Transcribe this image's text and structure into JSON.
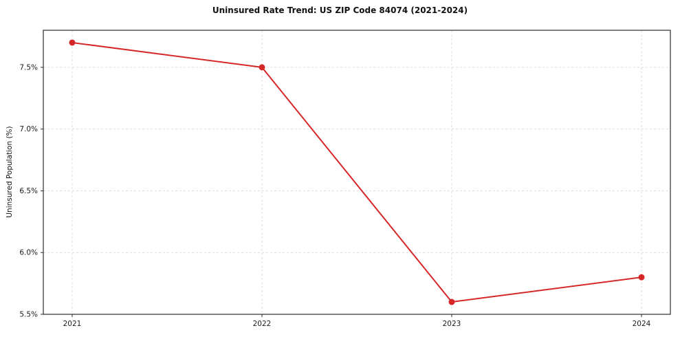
{
  "page": {
    "background": "#ffffff"
  },
  "chart_data": {
    "type": "line",
    "title": "Uninsured Rate Trend: US ZIP Code 84074 (2021-2024)",
    "xlabel": "",
    "ylabel": "Uninsured Population (%)",
    "categories": [
      "2021",
      "2022",
      "2023",
      "2024"
    ],
    "series": [
      {
        "name": "Uninsured Population (%)",
        "values": [
          7.7,
          7.5,
          5.6,
          5.8
        ],
        "color": "#d62728"
      }
    ],
    "ylim": [
      5.5,
      7.8
    ],
    "yticks": [
      5.5,
      6.0,
      6.5,
      7.0,
      7.5
    ],
    "ytick_labels": [
      "5.5%",
      "6.0%",
      "6.5%",
      "7.0%",
      "7.5%"
    ],
    "grid": true,
    "grid_style": "dashed",
    "legend_position": "none",
    "marker": "circle",
    "line_width": 2
  },
  "colors": {
    "line": "#d62728",
    "grid": "#dcdcdc",
    "axis": "#2b2b2b",
    "text": "#1a1a1a"
  }
}
